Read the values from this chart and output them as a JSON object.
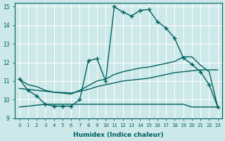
{
  "xlabel": "Humidex (Indice chaleur)",
  "xlim_min": -0.5,
  "xlim_max": 23.5,
  "ylim_min": 9.0,
  "ylim_max": 15.2,
  "yticks": [
    9,
    10,
    11,
    12,
    13,
    14,
    15
  ],
  "xticks": [
    0,
    1,
    2,
    3,
    4,
    5,
    6,
    7,
    8,
    9,
    10,
    11,
    12,
    13,
    14,
    15,
    16,
    17,
    18,
    19,
    20,
    21,
    22,
    23
  ],
  "bg_color": "#cce8e8",
  "grid_color": "#b8d8d8",
  "line_color": "#006060",
  "curve_main_x": [
    0,
    1,
    2,
    3,
    4,
    5,
    6,
    7,
    8,
    9,
    10,
    11,
    12,
    13,
    14,
    15,
    16,
    17,
    18,
    19,
    20,
    21,
    22,
    23
  ],
  "curve_main_y": [
    11.1,
    10.5,
    10.2,
    9.75,
    9.65,
    9.65,
    9.65,
    10.0,
    12.1,
    12.2,
    11.0,
    15.0,
    14.7,
    14.5,
    14.8,
    14.85,
    14.2,
    13.85,
    13.3,
    12.25,
    11.9,
    11.5,
    10.8,
    9.6
  ],
  "curve_upper_x": [
    0,
    1,
    2,
    3,
    4,
    5,
    6,
    7,
    8,
    9,
    10,
    11,
    12,
    13,
    14,
    15,
    16,
    17,
    18,
    19,
    20,
    21,
    22,
    23
  ],
  "curve_upper_y": [
    11.1,
    10.8,
    10.7,
    10.5,
    10.4,
    10.35,
    10.3,
    10.5,
    10.75,
    11.0,
    11.1,
    11.35,
    11.5,
    11.6,
    11.7,
    11.75,
    11.85,
    11.95,
    12.05,
    12.3,
    12.3,
    11.85,
    11.5,
    9.6
  ],
  "curve_lower_x": [
    0,
    1,
    2,
    3,
    4,
    5,
    6,
    7,
    8,
    9,
    10,
    11,
    12,
    13,
    14,
    15,
    16,
    17,
    18,
    19,
    20,
    21,
    22,
    23
  ],
  "curve_lower_y": [
    10.6,
    10.55,
    10.5,
    10.45,
    10.4,
    10.38,
    10.35,
    10.45,
    10.55,
    10.7,
    10.8,
    10.9,
    11.0,
    11.05,
    11.1,
    11.15,
    11.25,
    11.35,
    11.45,
    11.5,
    11.55,
    11.6,
    11.6,
    11.6
  ],
  "curve_flat_x": [
    0,
    1,
    2,
    3,
    4,
    5,
    6,
    7,
    8,
    9,
    10,
    11,
    12,
    13,
    14,
    15,
    16,
    17,
    18,
    19,
    20,
    21,
    22,
    23
  ],
  "curve_flat_y": [
    9.6,
    9.65,
    9.7,
    9.75,
    9.75,
    9.75,
    9.75,
    9.75,
    9.75,
    9.75,
    9.75,
    9.75,
    9.75,
    9.75,
    9.75,
    9.75,
    9.75,
    9.75,
    9.75,
    9.75,
    9.6,
    9.6,
    9.6,
    9.6
  ]
}
